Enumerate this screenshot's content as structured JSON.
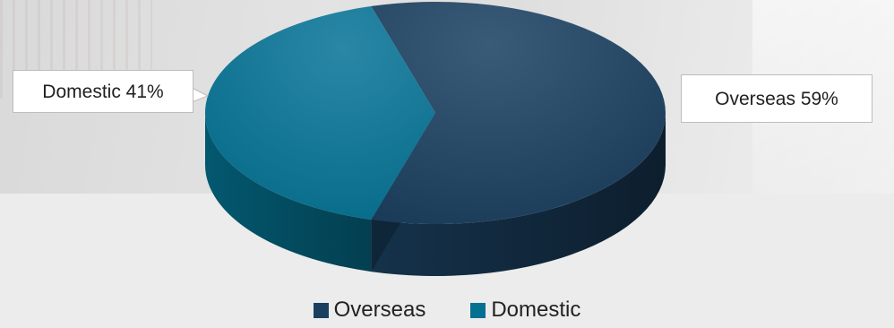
{
  "chart_data": {
    "type": "pie",
    "categories": [
      "Overseas",
      "Domestic"
    ],
    "values": [
      59,
      41
    ],
    "data_labels": [
      "Overseas 59%",
      "Domestic 41%"
    ],
    "colors": {
      "Overseas": "#1b3f5e",
      "Domestic": "#05708f"
    },
    "style": "3d",
    "legend_position": "bottom"
  }
}
